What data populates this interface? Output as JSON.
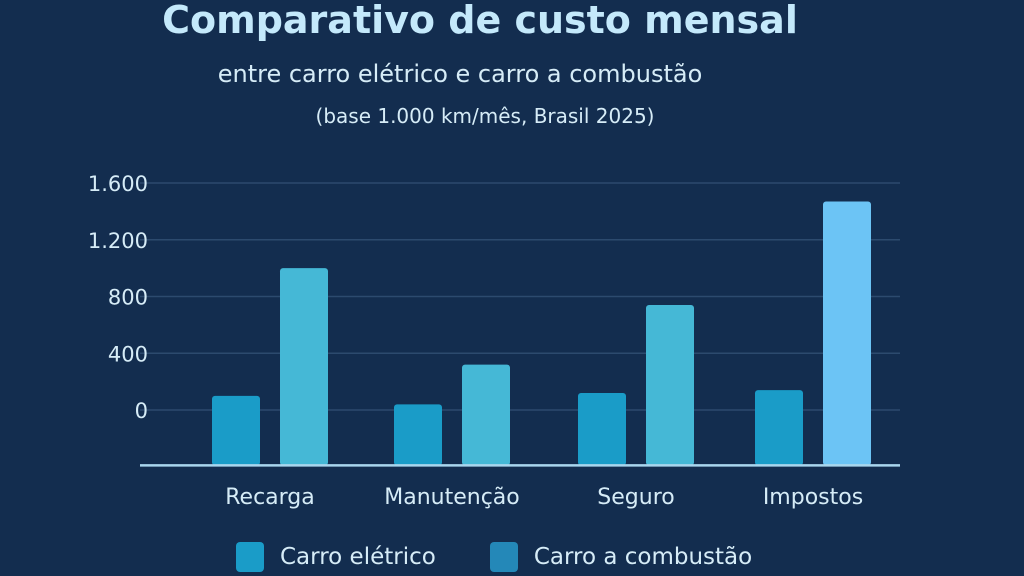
{
  "chart_data": {
    "type": "bar",
    "title": "Comparativo de custo mensal",
    "subtitle": "entre carro elétrico e carro a combustão",
    "note": "(base 1.000 km/mês, Brasil 2025)",
    "xlabel": "",
    "ylabel": "",
    "categories": [
      "Recarga",
      "Manutenção",
      "Seguro",
      "Impostos"
    ],
    "yticks": [
      0,
      400,
      800,
      1200,
      1600
    ],
    "ytick_labels": [
      "0",
      "400",
      "800",
      "1.200",
      "1.600"
    ],
    "ylim": [
      -390,
      1600
    ],
    "grid": true,
    "legend_position": "bottom",
    "series": [
      {
        "name": "Carro elétrico",
        "values": [
          100,
          40,
          120,
          140
        ],
        "color": "#1a9cc8"
      },
      {
        "name": "Carro a combustão",
        "values": [
          1000,
          320,
          740,
          1470
        ],
        "color": "#45b8d6",
        "highlight_color": "#6cc4f5"
      }
    ]
  },
  "colors": {
    "background": "#132d4f",
    "title": "#c4e9fb",
    "text": "#d6ecf7",
    "grid": "#2c4a6e",
    "axis": "#a9d6ee"
  }
}
